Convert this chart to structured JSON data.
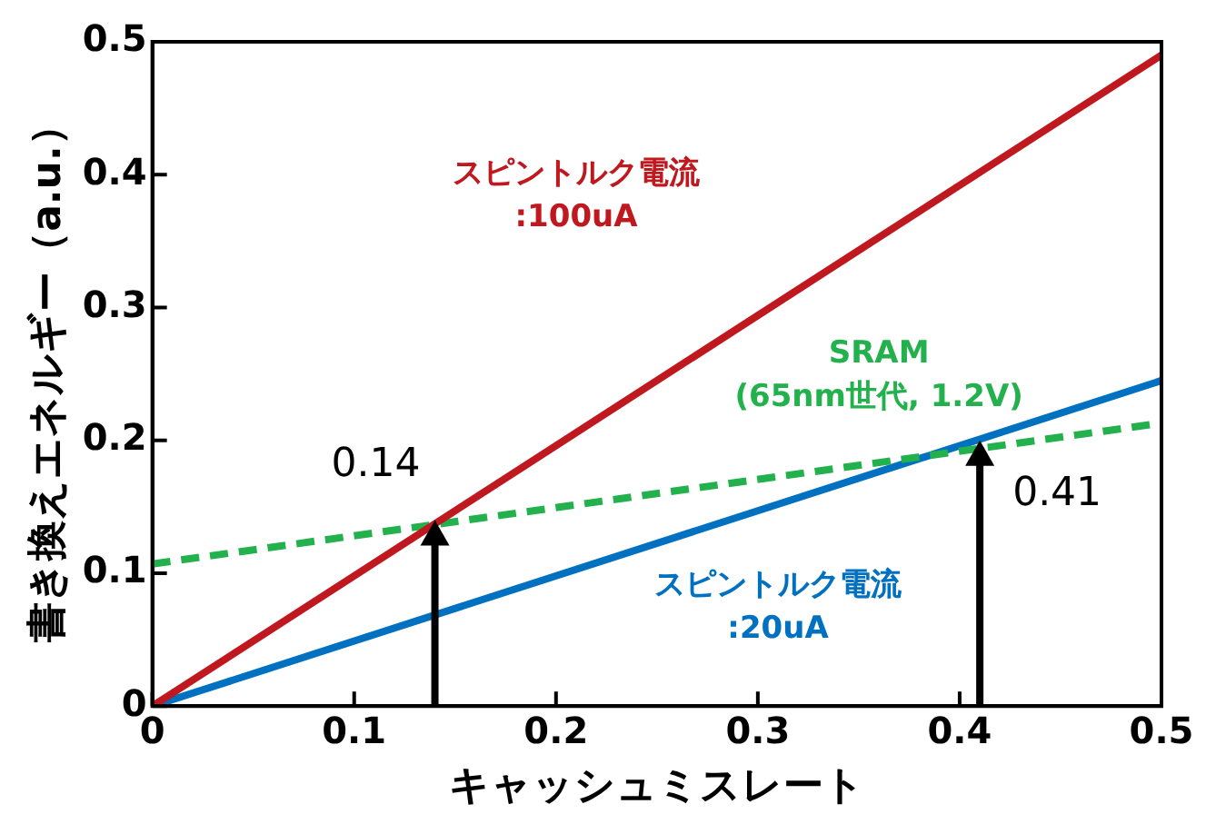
{
  "chart_data": {
    "type": "line",
    "xlabel": "キャッシュミスレート",
    "ylabel": "書き換えエネルギー（a.u.）",
    "xlim": [
      0,
      0.5
    ],
    "xticks": [
      0,
      0.1,
      0.2,
      0.3,
      0.4,
      0.5
    ],
    "ylim": [
      0,
      0.5
    ],
    "yticks": [
      0,
      0.1,
      0.2,
      0.3,
      0.4,
      0.5
    ],
    "x": [
      0,
      0.5
    ],
    "grid": false,
    "legend": false,
    "marker": "none",
    "series": [
      {
        "name": "スピントルク電流\n:100uA",
        "color": "#c0181f",
        "values": [
          0,
          0.49
        ],
        "line_style": "solid"
      },
      {
        "name": "SRAM\n(65nm世代, 1.2V)",
        "color": "#22b14c",
        "values": [
          0.107,
          0.213
        ],
        "line_style": "dashed"
      },
      {
        "name": "スピントルク電流\n:20uA",
        "color": "#0070c0",
        "values": [
          0,
          0.245
        ],
        "line_style": "solid"
      }
    ],
    "annotations": [
      {
        "text": "0.14",
        "x": 0.14,
        "y": 0.14
      },
      {
        "text": "0.41",
        "x": 0.41,
        "y": 0.2
      }
    ]
  }
}
